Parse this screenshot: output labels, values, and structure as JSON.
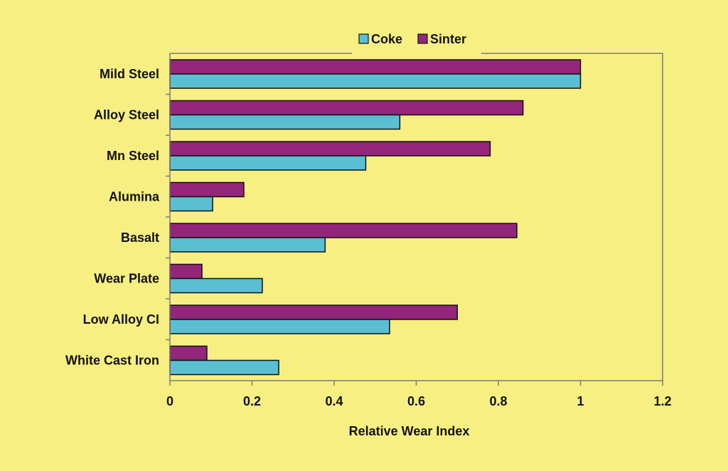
{
  "chart_data": {
    "type": "bar",
    "orientation": "horizontal",
    "categories": [
      "Mild Steel",
      "Alloy Steel",
      "Mn Steel",
      "Alumina",
      "Basalt",
      "Wear Plate",
      "Low Alloy CI",
      "White Cast Iron"
    ],
    "series": [
      {
        "name": "Coke",
        "color": "#5bbfd3",
        "values": [
          1.0,
          0.56,
          0.477,
          0.104,
          0.378,
          0.225,
          0.535,
          0.265
        ]
      },
      {
        "name": "Sinter",
        "color": "#93267a",
        "values": [
          1.0,
          0.86,
          0.78,
          0.18,
          0.845,
          0.078,
          0.7,
          0.09
        ]
      }
    ],
    "xlabel": "Relative Wear Index",
    "ylabel": "",
    "xlim": [
      0,
      1.2
    ],
    "xticks": [
      "0",
      "0.2",
      "0.4",
      "0.6",
      "0.8",
      "1",
      "1.2"
    ],
    "legend_position": "top",
    "grid": false,
    "background_color": "#f7ef82",
    "axis_color": "#7a7a7a",
    "bar_border_color": "#111111"
  }
}
